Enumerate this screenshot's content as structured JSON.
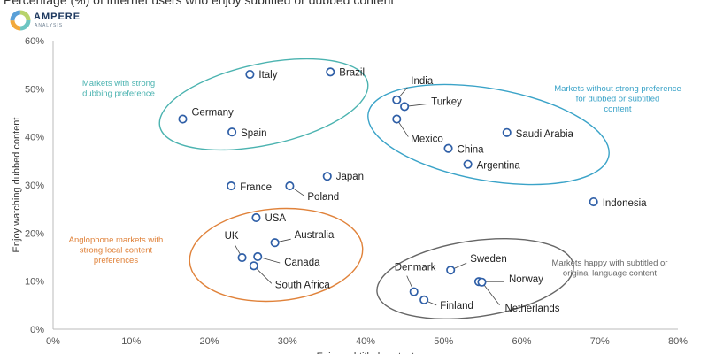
{
  "page": {
    "title": "Percentage (%) of internet users who enjoy subtitled or dubbed content"
  },
  "logo": {
    "name": "AMPERE",
    "subtitle": "ANALYSIS",
    "icon": "ampere-ring-logo",
    "colors": [
      "#6cc5c2",
      "#f2a93b",
      "#5aa0d8",
      "#b8d36b"
    ]
  },
  "chart_data": {
    "type": "scatter",
    "title": "",
    "xlabel": "Enjoy subtitled content",
    "ylabel": "Enjoy watching dubbed content",
    "xlim": [
      0,
      0.8
    ],
    "ylim": [
      0,
      0.6
    ],
    "x_ticks": [
      0,
      0.1,
      0.2,
      0.3,
      0.4,
      0.5,
      0.6,
      0.7,
      0.8
    ],
    "y_ticks": [
      0,
      0.1,
      0.2,
      0.3,
      0.4,
      0.5,
      0.6
    ],
    "x_tick_labels": [
      "0%",
      "10%",
      "20%",
      "30%",
      "40%",
      "50%",
      "60%",
      "70%",
      "80%"
    ],
    "y_tick_labels": [
      "0%",
      "10%",
      "20%",
      "30%",
      "40%",
      "50%",
      "60%"
    ],
    "grid": false,
    "legend": "none",
    "marker_color": "#2f5fa7",
    "points": [
      {
        "label": "Italy",
        "x": 0.252,
        "y": 0.53
      },
      {
        "label": "Brazil",
        "x": 0.355,
        "y": 0.535
      },
      {
        "label": "Germany",
        "x": 0.166,
        "y": 0.437
      },
      {
        "label": "Spain",
        "x": 0.229,
        "y": 0.41
      },
      {
        "label": "India",
        "x": 0.44,
        "y": 0.477
      },
      {
        "label": "Turkey",
        "x": 0.45,
        "y": 0.463
      },
      {
        "label": "Mexico",
        "x": 0.44,
        "y": 0.437
      },
      {
        "label": "China",
        "x": 0.506,
        "y": 0.376
      },
      {
        "label": "Argentina",
        "x": 0.531,
        "y": 0.343
      },
      {
        "label": "Saudi Arabia",
        "x": 0.581,
        "y": 0.409
      },
      {
        "label": "Japan",
        "x": 0.351,
        "y": 0.318
      },
      {
        "label": "France",
        "x": 0.228,
        "y": 0.298
      },
      {
        "label": "Poland",
        "x": 0.303,
        "y": 0.298
      },
      {
        "label": "Indonesia",
        "x": 0.692,
        "y": 0.265
      },
      {
        "label": "USA",
        "x": 0.26,
        "y": 0.232
      },
      {
        "label": "Australia",
        "x": 0.284,
        "y": 0.18
      },
      {
        "label": "UK",
        "x": 0.242,
        "y": 0.149
      },
      {
        "label": "Canada",
        "x": 0.262,
        "y": 0.151
      },
      {
        "label": "South Africa",
        "x": 0.257,
        "y": 0.132
      },
      {
        "label": "Denmark",
        "x": 0.462,
        "y": 0.078
      },
      {
        "label": "Finland",
        "x": 0.475,
        "y": 0.061
      },
      {
        "label": "Sweden",
        "x": 0.509,
        "y": 0.123
      },
      {
        "label": "Norway",
        "x": 0.545,
        "y": 0.099
      },
      {
        "label": "Netherlands",
        "x": 0.549,
        "y": 0.098
      }
    ],
    "groups": [
      {
        "label": "Markets with strong dubbing preference",
        "color": "#4bb3b0"
      },
      {
        "label": "Markets without strong preference for dubbed or subtitled content",
        "color": "#3aa3c8"
      },
      {
        "label": "Anglophone markets with strong local content preferences",
        "color": "#e0823a"
      },
      {
        "label": "Markets happy with subtitled or original language content",
        "color": "#666666"
      }
    ]
  }
}
